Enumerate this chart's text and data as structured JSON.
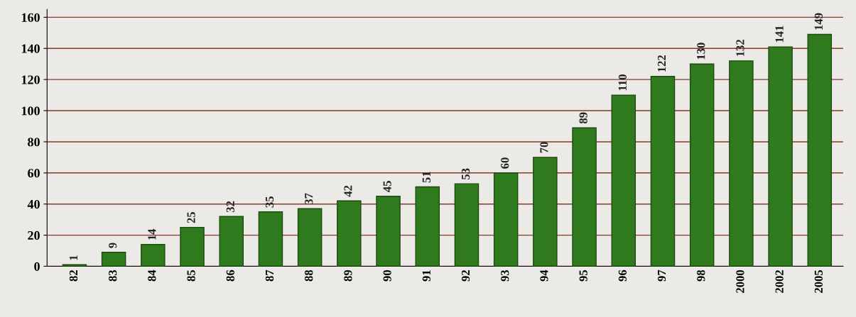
{
  "chart_data": {
    "type": "bar",
    "categories": [
      "82",
      "83",
      "84",
      "85",
      "86",
      "87",
      "88",
      "89",
      "90",
      "91",
      "92",
      "93",
      "94",
      "95",
      "96",
      "97",
      "98",
      "2000",
      "2002",
      "2005"
    ],
    "values": [
      1,
      9,
      14,
      25,
      32,
      35,
      37,
      42,
      45,
      51,
      53,
      60,
      70,
      89,
      110,
      122,
      130,
      132,
      141,
      149
    ],
    "color": "#2f7a1c",
    "ylim": [
      0,
      165
    ],
    "yticks": [
      0,
      20,
      40,
      60,
      80,
      100,
      120,
      140,
      160
    ],
    "grid": "y",
    "data_labels": true,
    "legend": false
  }
}
